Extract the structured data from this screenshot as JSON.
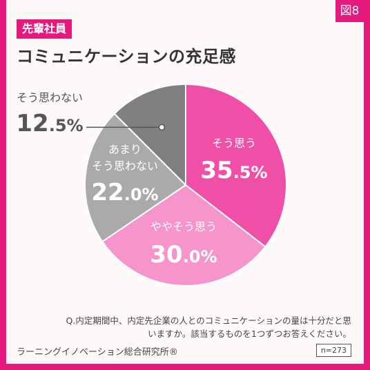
{
  "figure_label": "図8",
  "category_tag": "先輩社員",
  "chart_data": {
    "type": "pie",
    "title": "コミュニケーションの充足感",
    "slices": [
      {
        "label": "そう思う",
        "value": 35.5,
        "color": "#f04fa8"
      },
      {
        "label": "ややそう思う",
        "value": 30.0,
        "color": "#f595cb"
      },
      {
        "label": "あまり そう思わない",
        "value": 22.0,
        "color": "#aaaaaa"
      },
      {
        "label": "そう思わない",
        "value": 12.5,
        "color": "#808080"
      }
    ],
    "value_suffix": "%"
  },
  "question": "Q.内定期間中、内定先企業の人とのコミュニケーションの量は十分だと思いますか。該当するものを1つずつお答えください。",
  "source": "ラーニングイノベーション総合研究所®",
  "sample_size": "n=273"
}
